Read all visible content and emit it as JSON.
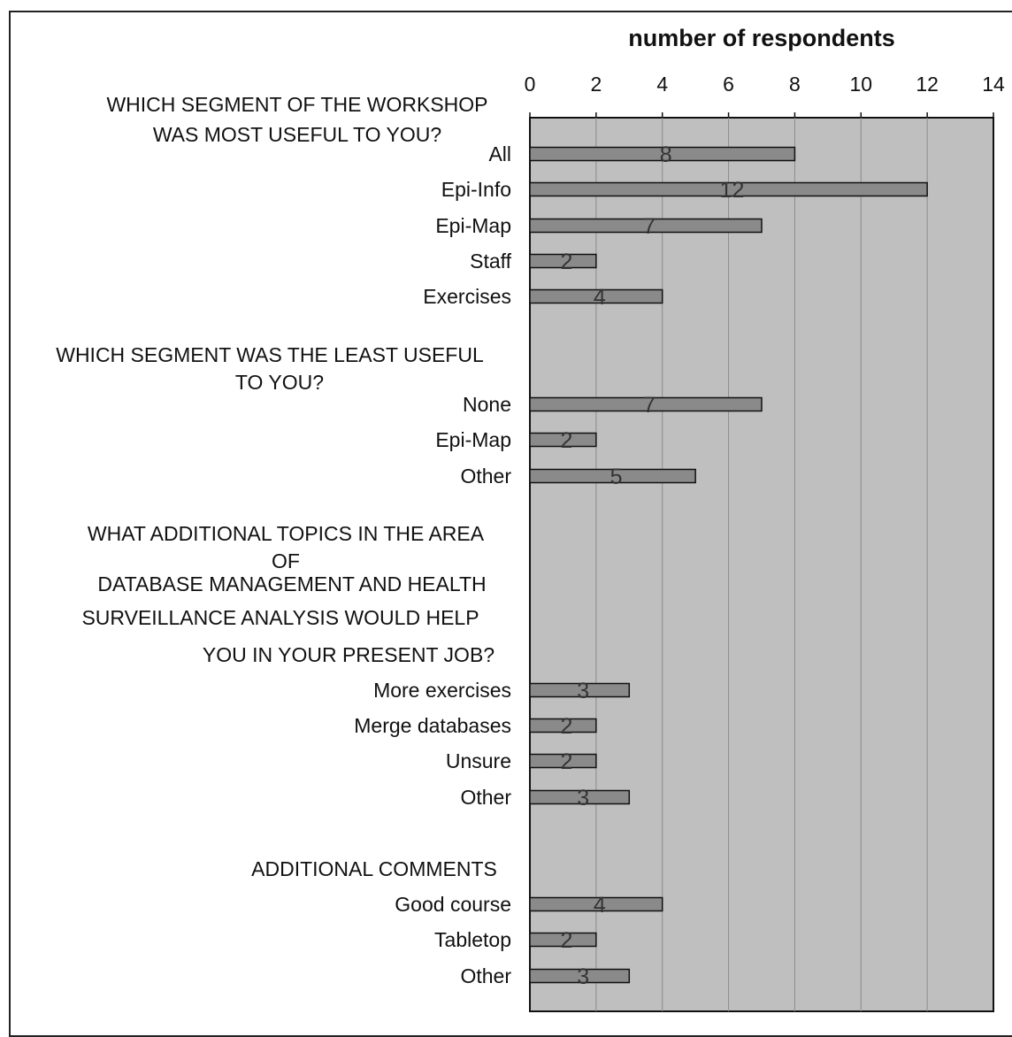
{
  "chart_data": {
    "type": "bar",
    "orientation": "horizontal",
    "xlabel": "number of respondents",
    "xlim": [
      0,
      14
    ],
    "xticks": [
      "0",
      "2",
      "4",
      "6",
      "8",
      "10",
      "12",
      "14"
    ],
    "grid": true,
    "colors": {
      "plot_bg": "#bfbfbf",
      "bar": "#8a8a8a",
      "gridline": "#8c8c8c"
    },
    "groups": [
      {
        "header": [
          "WHICH SEGMENT OF THE WORKSHOP",
          "WAS MOST USEFUL TO YOU?"
        ],
        "categories": [
          "All",
          "Epi-Info",
          "Epi-Map",
          "Staff",
          "Exercises"
        ],
        "values": [
          8,
          12,
          7,
          2,
          4
        ]
      },
      {
        "header": [
          "WHICH SEGMENT WAS THE LEAST USEFUL",
          "TO YOU?"
        ],
        "categories": [
          "None",
          "Epi-Map",
          "Other"
        ],
        "values": [
          7,
          2,
          5
        ]
      },
      {
        "header": [
          "WHAT ADDITIONAL TOPICS IN THE AREA",
          "OF",
          "DATABASE MANAGEMENT AND HEALTH",
          "SURVEILLANCE ANALYSIS WOULD HELP",
          "YOU IN YOUR PRESENT JOB?"
        ],
        "categories": [
          "More exercises",
          "Merge databases",
          "Unsure",
          "Other"
        ],
        "values": [
          3,
          2,
          2,
          3
        ]
      },
      {
        "header": [
          "ADDITIONAL COMMENTS"
        ],
        "categories": [
          "Good course",
          "Tabletop",
          "Other"
        ],
        "values": [
          4,
          2,
          3
        ]
      }
    ]
  }
}
